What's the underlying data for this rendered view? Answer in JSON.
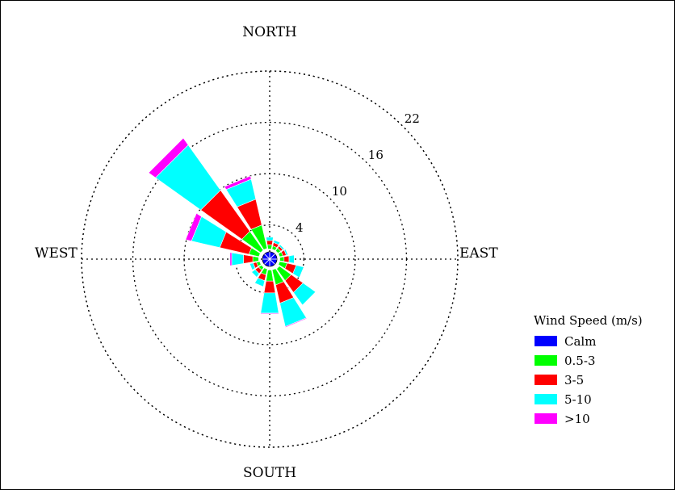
{
  "chart_data": {
    "type": "wind-rose",
    "compass": {
      "north": "NORTH",
      "south": "SOUTH",
      "east": "EAST",
      "west": "WEST"
    },
    "rings": [
      4,
      10,
      16,
      22
    ],
    "rmax": 22,
    "legend": {
      "title": "Wind Speed (m/s)",
      "placement": "right"
    },
    "bins": [
      {
        "label": "Calm",
        "color": "#0000ff"
      },
      {
        "label": "0.5-3",
        "color": "#00ff00"
      },
      {
        "label": "3-5",
        "color": "#ff0000"
      },
      {
        "label": "5-10",
        "color": "#00ffff"
      },
      {
        "label": ">10",
        "color": "#ff00ff"
      }
    ],
    "calm_radius": 1.0,
    "directions": [
      {
        "dir": "N",
        "angle": 0,
        "cum": [
          1.2,
          1.7,
          2.2,
          2.6,
          2.6
        ]
      },
      {
        "dir": "NNE",
        "angle": 22.5,
        "cum": [
          1.2,
          1.6,
          2.0,
          2.3,
          2.3
        ]
      },
      {
        "dir": "NE",
        "angle": 45,
        "cum": [
          1.2,
          1.6,
          1.9,
          2.1,
          2.1
        ]
      },
      {
        "dir": "ENE",
        "angle": 67.5,
        "cum": [
          1.2,
          1.6,
          2.0,
          2.2,
          2.2
        ]
      },
      {
        "dir": "E",
        "angle": 90,
        "cum": [
          1.2,
          1.7,
          2.3,
          2.9,
          2.9
        ]
      },
      {
        "dir": "ESE",
        "angle": 112.5,
        "cum": [
          1.2,
          2.1,
          3.2,
          4.1,
          4.1
        ]
      },
      {
        "dir": "SE",
        "angle": 135,
        "cum": [
          1.4,
          3.1,
          4.8,
          6.6,
          6.6
        ]
      },
      {
        "dir": "SSE",
        "angle": 157.5,
        "cum": [
          1.3,
          3.1,
          5.3,
          8.1,
          8.2
        ]
      },
      {
        "dir": "S",
        "angle": 180,
        "cum": [
          1.3,
          2.6,
          4.0,
          6.4,
          6.5
        ]
      },
      {
        "dir": "SSW",
        "angle": 202.5,
        "cum": [
          1.2,
          1.9,
          2.6,
          3.3,
          3.3
        ]
      },
      {
        "dir": "SW",
        "angle": 225,
        "cum": [
          1.2,
          1.6,
          2.1,
          2.6,
          2.6
        ]
      },
      {
        "dir": "WSW",
        "angle": 247.5,
        "cum": [
          1.2,
          1.6,
          2.0,
          2.4,
          2.4
        ]
      },
      {
        "dir": "W",
        "angle": 270,
        "cum": [
          1.3,
          2.0,
          3.1,
          4.5,
          4.7
        ]
      },
      {
        "dir": "WNW",
        "angle": 292.5,
        "cum": [
          1.3,
          2.5,
          6.0,
          9.4,
          10.1
        ]
      },
      {
        "dir": "NW",
        "angle": 315,
        "cum": [
          1.3,
          4.0,
          9.9,
          16.4,
          17.4
        ]
      },
      {
        "dir": "NNW",
        "angle": 337.5,
        "cum": [
          1.3,
          4.1,
          7.2,
          9.6,
          10.0
        ]
      }
    ]
  }
}
